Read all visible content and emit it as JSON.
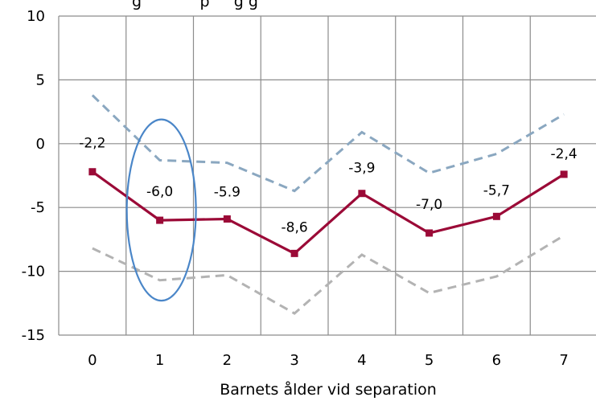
{
  "chart_data": {
    "type": "line",
    "title": "",
    "title_fragment_visible": "g            p     g g",
    "xlabel": "Barnets ålder vid separation",
    "ylabel": "",
    "x": [
      0,
      1,
      2,
      3,
      4,
      5,
      6,
      7
    ],
    "ylim": [
      -15,
      10
    ],
    "yticks": [
      10,
      5,
      0,
      -5,
      -10,
      -15
    ],
    "grid": true,
    "series": [
      {
        "name": "",
        "role": "estimate",
        "color": "#9b0a37",
        "style": "solid",
        "marker": "square",
        "values": [
          -2.2,
          -6.0,
          -5.9,
          -8.6,
          -3.9,
          -7.0,
          -5.7,
          -2.4
        ],
        "labels": [
          "-2,2",
          "-6,0",
          "-5.9",
          "-8,6",
          "-3,9",
          "-7,0",
          "-5,7",
          "-2,4"
        ]
      },
      {
        "name": "",
        "role": "upper-bound",
        "color": "#8aa7c0",
        "style": "dashed",
        "values": [
          3.8,
          -1.3,
          -1.5,
          -3.7,
          0.9,
          -2.3,
          -0.8,
          2.3
        ]
      },
      {
        "name": "",
        "role": "lower-bound",
        "color": "#b3b3b3",
        "style": "dashed",
        "values": [
          -8.2,
          -10.7,
          -10.3,
          -13.3,
          -8.7,
          -11.7,
          -10.4,
          -7.2
        ]
      }
    ],
    "annotations": [
      {
        "type": "ellipse",
        "around_x": 1,
        "y_range": [
          -12.3,
          1.9
        ],
        "color": "#4a86c8"
      }
    ]
  }
}
